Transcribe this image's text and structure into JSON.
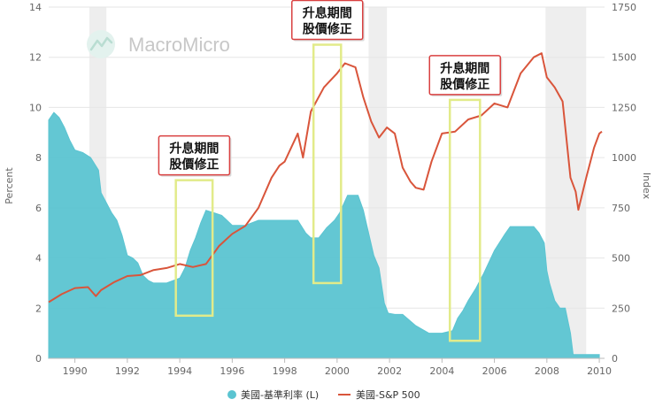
{
  "chart_data": {
    "type": "area",
    "watermark": "MacroMicro",
    "axes": {
      "x": {
        "range": [
          1989.0,
          2010.2
        ],
        "ticks": [
          "1990",
          "1992",
          "1994",
          "1996",
          "1998",
          "2000",
          "2002",
          "2004",
          "2006",
          "2008",
          "2010"
        ]
      },
      "y_left": {
        "label": "Percent",
        "range": [
          0,
          14
        ],
        "ticks": [
          "0",
          "2",
          "4",
          "6",
          "8",
          "10",
          "12",
          "14"
        ]
      },
      "y_right": {
        "label": "Index",
        "range": [
          0,
          1750
        ],
        "ticks": [
          "0",
          "250",
          "500",
          "750",
          "1000",
          "1250",
          "1500",
          "1750"
        ]
      }
    },
    "recession_bands": [
      [
        1990.55,
        1991.2
      ],
      [
        2001.2,
        2001.9
      ],
      [
        2007.95,
        2009.5
      ]
    ],
    "series": [
      {
        "name": "美國-基準利率 (L)",
        "kind": "area",
        "axis": "left",
        "color": "#5bc4d1",
        "x": [
          1989.0,
          1989.2,
          1989.4,
          1989.6,
          1989.8,
          1990.0,
          1990.3,
          1990.6,
          1990.9,
          1991.0,
          1991.2,
          1991.4,
          1991.6,
          1991.8,
          1992.0,
          1992.2,
          1992.4,
          1992.6,
          1992.8,
          1993.0,
          1993.5,
          1994.0,
          1994.2,
          1994.4,
          1994.6,
          1994.8,
          1995.0,
          1995.3,
          1995.6,
          1996.0,
          1996.5,
          1997.0,
          1997.5,
          1998.0,
          1998.5,
          1998.8,
          1999.0,
          1999.3,
          1999.6,
          1999.9,
          2000.1,
          2000.4,
          2000.8,
          2001.0,
          2001.2,
          2001.4,
          2001.6,
          2001.8,
          2001.95,
          2002.2,
          2002.5,
          2003.0,
          2003.5,
          2004.0,
          2004.4,
          2004.6,
          2004.8,
          2005.0,
          2005.3,
          2005.6,
          2006.0,
          2006.4,
          2006.6,
          2007.0,
          2007.5,
          2007.7,
          2007.9,
          2008.0,
          2008.1,
          2008.3,
          2008.5,
          2008.7,
          2008.9,
          2009.0,
          2009.5,
          2010.0
        ],
        "values": [
          9.5,
          9.8,
          9.6,
          9.2,
          8.7,
          8.3,
          8.2,
          8.0,
          7.5,
          6.6,
          6.2,
          5.8,
          5.5,
          4.9,
          4.1,
          4.0,
          3.8,
          3.3,
          3.1,
          3.0,
          3.0,
          3.2,
          3.6,
          4.3,
          4.8,
          5.4,
          5.9,
          5.8,
          5.7,
          5.3,
          5.3,
          5.5,
          5.5,
          5.5,
          5.5,
          5.0,
          4.8,
          4.8,
          5.2,
          5.5,
          5.8,
          6.5,
          6.5,
          5.9,
          5.0,
          4.1,
          3.6,
          2.2,
          1.8,
          1.75,
          1.75,
          1.3,
          1.0,
          1.0,
          1.1,
          1.6,
          1.9,
          2.3,
          2.8,
          3.4,
          4.3,
          4.95,
          5.25,
          5.25,
          5.25,
          5.0,
          4.6,
          3.5,
          3.0,
          2.3,
          2.0,
          2.0,
          1.0,
          0.15,
          0.15,
          0.15
        ]
      },
      {
        "name": "美國-S&P 500",
        "kind": "line",
        "axis": "right",
        "color": "#d9553b",
        "x": [
          1989.0,
          1989.5,
          1990.0,
          1990.5,
          1990.8,
          1991.0,
          1991.5,
          1992.0,
          1992.5,
          1993.0,
          1993.5,
          1994.0,
          1994.5,
          1995.0,
          1995.5,
          1996.0,
          1996.5,
          1997.0,
          1997.5,
          1997.8,
          1998.0,
          1998.5,
          1998.7,
          1999.0,
          1999.5,
          2000.0,
          2000.3,
          2000.7,
          2001.0,
          2001.3,
          2001.6,
          2001.9,
          2002.2,
          2002.5,
          2002.8,
          2003.0,
          2003.3,
          2003.6,
          2004.0,
          2004.5,
          2005.0,
          2005.5,
          2006.0,
          2006.5,
          2007.0,
          2007.5,
          2007.8,
          2008.0,
          2008.3,
          2008.6,
          2008.9,
          2009.1,
          2009.2,
          2009.5,
          2009.8,
          2010.0,
          2010.1
        ],
        "values": [
          280,
          320,
          350,
          355,
          310,
          340,
          380,
          410,
          415,
          440,
          450,
          470,
          455,
          470,
          560,
          620,
          660,
          750,
          900,
          960,
          980,
          1120,
          1000,
          1230,
          1350,
          1420,
          1470,
          1450,
          1300,
          1180,
          1100,
          1150,
          1120,
          950,
          880,
          850,
          840,
          980,
          1120,
          1130,
          1190,
          1210,
          1270,
          1250,
          1420,
          1500,
          1520,
          1400,
          1350,
          1280,
          900,
          830,
          740,
          900,
          1050,
          1120,
          1130
        ]
      }
    ],
    "annotations": [
      {
        "line1": "升息期間",
        "line2": "股價修正",
        "x_range": [
          1993.85,
          1995.25
        ],
        "y_range_left": [
          1.7,
          7.1
        ]
      },
      {
        "line1": "升息期間",
        "line2": "股價修正",
        "x_range": [
          1999.1,
          2000.15
        ],
        "y_range_left": [
          3.0,
          12.5
        ]
      },
      {
        "line1": "升息期間",
        "line2": "股價修正",
        "x_range": [
          2004.3,
          2005.45
        ],
        "y_range_left": [
          0.7,
          10.3
        ]
      }
    ],
    "legend": {
      "placement": "bottom-center"
    }
  }
}
